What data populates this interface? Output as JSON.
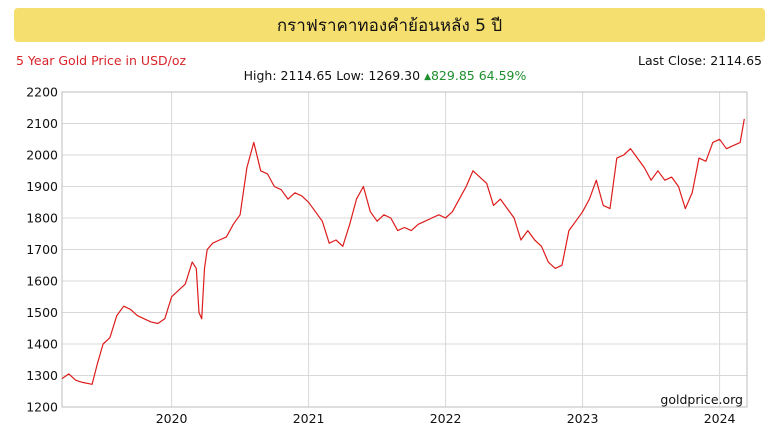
{
  "title": "กราฟราคาทองคำย้อนหลัง 5 ปี",
  "subtitle": "5 Year Gold Price in USD/oz",
  "last_close_label": "Last Close:",
  "last_close_value": "2114.65",
  "stats": {
    "high_label": "High:",
    "high_value": "2114.65",
    "low_label": "Low:",
    "low_value": "1269.30",
    "change_value": "829.85",
    "change_percent": "64.59%"
  },
  "watermark": "goldprice.org",
  "colors": {
    "line": "#dd1c1c",
    "title_bg": "#f5df6f",
    "subtitle": "#d8242a",
    "positive": "#1f8f2e",
    "grid": "#d8d8d8"
  },
  "chart_data": {
    "type": "line",
    "title": "5 Year Gold Price in USD/oz",
    "xlabel": "",
    "ylabel": "",
    "x_range": [
      2019.2,
      2024.2
    ],
    "ylim": [
      1200,
      2200
    ],
    "y_ticks": [
      1200,
      1300,
      1400,
      1500,
      1600,
      1700,
      1800,
      1900,
      2000,
      2100,
      2200
    ],
    "x_ticks": [
      {
        "label": "2020",
        "value": 2020.0
      },
      {
        "label": "2021",
        "value": 2021.0
      },
      {
        "label": "2022",
        "value": 2022.0
      },
      {
        "label": "2023",
        "value": 2023.0
      },
      {
        "label": "2024",
        "value": 2024.0
      }
    ],
    "grid": true,
    "series": [
      {
        "name": "",
        "x": [
          2019.2,
          2019.25,
          2019.3,
          2019.35,
          2019.42,
          2019.46,
          2019.5,
          2019.55,
          2019.6,
          2019.65,
          2019.7,
          2019.75,
          2019.8,
          2019.85,
          2019.9,
          2019.95,
          2020.0,
          2020.05,
          2020.1,
          2020.15,
          2020.18,
          2020.2,
          2020.22,
          2020.24,
          2020.26,
          2020.3,
          2020.35,
          2020.4,
          2020.45,
          2020.5,
          2020.55,
          2020.6,
          2020.65,
          2020.7,
          2020.75,
          2020.8,
          2020.85,
          2020.9,
          2020.95,
          2021.0,
          2021.05,
          2021.1,
          2021.15,
          2021.2,
          2021.25,
          2021.3,
          2021.35,
          2021.4,
          2021.45,
          2021.5,
          2021.55,
          2021.6,
          2021.65,
          2021.7,
          2021.75,
          2021.8,
          2021.85,
          2021.9,
          2021.95,
          2022.0,
          2022.05,
          2022.1,
          2022.15,
          2022.2,
          2022.25,
          2022.3,
          2022.35,
          2022.4,
          2022.45,
          2022.5,
          2022.55,
          2022.6,
          2022.65,
          2022.7,
          2022.75,
          2022.8,
          2022.85,
          2022.9,
          2022.95,
          2023.0,
          2023.05,
          2023.1,
          2023.15,
          2023.2,
          2023.25,
          2023.3,
          2023.35,
          2023.4,
          2023.45,
          2023.5,
          2023.55,
          2023.6,
          2023.65,
          2023.7,
          2023.75,
          2023.8,
          2023.85,
          2023.9,
          2023.95,
          2024.0,
          2024.05,
          2024.1,
          2024.15,
          2024.18
        ],
        "values": [
          1290,
          1305,
          1285,
          1278,
          1272,
          1340,
          1400,
          1420,
          1490,
          1520,
          1510,
          1490,
          1480,
          1470,
          1465,
          1480,
          1550,
          1570,
          1590,
          1660,
          1640,
          1500,
          1480,
          1640,
          1700,
          1720,
          1730,
          1740,
          1780,
          1810,
          1960,
          2040,
          1950,
          1940,
          1900,
          1890,
          1860,
          1880,
          1870,
          1850,
          1820,
          1790,
          1720,
          1730,
          1710,
          1780,
          1860,
          1900,
          1820,
          1790,
          1810,
          1800,
          1760,
          1770,
          1760,
          1780,
          1790,
          1800,
          1810,
          1800,
          1820,
          1860,
          1900,
          1950,
          1930,
          1910,
          1840,
          1860,
          1830,
          1800,
          1730,
          1760,
          1730,
          1710,
          1660,
          1640,
          1650,
          1760,
          1790,
          1820,
          1860,
          1920,
          1840,
          1830,
          1990,
          2000,
          2020,
          1990,
          1960,
          1920,
          1950,
          1920,
          1930,
          1900,
          1830,
          1880,
          1990,
          1980,
          2040,
          2050,
          2020,
          2030,
          2040,
          2114.65
        ]
      }
    ]
  }
}
